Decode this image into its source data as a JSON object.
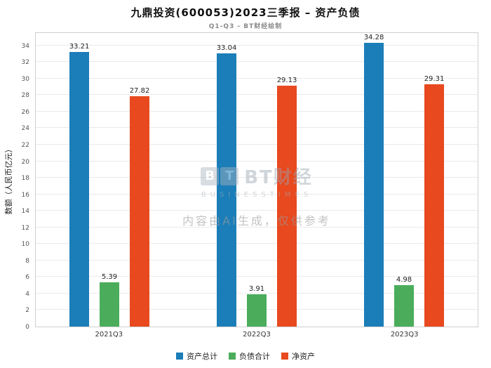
{
  "title": "九鼎投资(600053)2023三季报 – 资产负债",
  "subtitle": "Q1-Q3 - BT财经绘制",
  "watermark": {
    "logo_blocks": [
      "B",
      "T"
    ],
    "logo_text": "BT财经",
    "sub_text": "BUSINESSTIMES",
    "disclaimer": "内容由AI生成，仅供参考"
  },
  "chart_data": {
    "type": "bar",
    "title": "九鼎投资(600053)2023三季报 – 资产负债",
    "subtitle": "Q1-Q3 - BT财经绘制",
    "categories": [
      "2021Q3",
      "2022Q3",
      "2023Q3"
    ],
    "series": [
      {
        "name": "资产总计",
        "color": "#1b7eb8",
        "values": [
          33.21,
          33.04,
          34.28
        ]
      },
      {
        "name": "负债合计",
        "color": "#4bad5b",
        "values": [
          5.39,
          3.91,
          4.98
        ]
      },
      {
        "name": "净资产",
        "color": "#e8491f",
        "values": [
          27.82,
          29.13,
          29.31
        ]
      }
    ],
    "xlabel": "",
    "ylabel": "数额（人民币亿元）",
    "ylim": [
      0,
      35.5
    ],
    "ytick_step": 2,
    "ymax_tick": 34,
    "grid": true,
    "legend_position": "bottom"
  }
}
